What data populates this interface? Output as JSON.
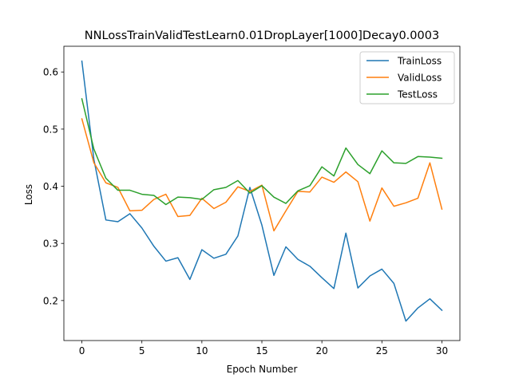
{
  "chart_data": {
    "type": "line",
    "title": "NNLossTrainValidTestLearn0.01DropLayer[1000]Decay0.0003",
    "xlabel": "Epoch Number",
    "ylabel": "Loss",
    "xlim": [
      -1.5,
      31.5
    ],
    "ylim": [
      0.13,
      0.645
    ],
    "xticks": [
      0,
      5,
      10,
      15,
      20,
      25,
      30
    ],
    "xtick_labels": [
      "0",
      "5",
      "10",
      "15",
      "20",
      "25",
      "30"
    ],
    "yticks": [
      0.2,
      0.3,
      0.4,
      0.5,
      0.6
    ],
    "ytick_labels": [
      "0.2",
      "0.3",
      "0.4",
      "0.5",
      "0.6"
    ],
    "grid": false,
    "legend_position": "top-right",
    "x": [
      0,
      1,
      2,
      3,
      4,
      5,
      6,
      7,
      8,
      9,
      10,
      11,
      12,
      13,
      14,
      15,
      16,
      17,
      18,
      19,
      20,
      21,
      22,
      23,
      24,
      25,
      26,
      27,
      28,
      29,
      30
    ],
    "series": [
      {
        "name": "TrainLoss",
        "color": "#1f77b4",
        "values": [
          0.619,
          0.447,
          0.341,
          0.338,
          0.352,
          0.327,
          0.295,
          0.269,
          0.275,
          0.237,
          0.289,
          0.274,
          0.281,
          0.313,
          0.398,
          0.332,
          0.244,
          0.294,
          0.272,
          0.26,
          0.24,
          0.221,
          0.318,
          0.222,
          0.243,
          0.255,
          0.23,
          0.164,
          0.187,
          0.203,
          0.183
        ]
      },
      {
        "name": "ValidLoss",
        "color": "#ff7f0e",
        "values": [
          0.518,
          0.441,
          0.406,
          0.398,
          0.357,
          0.358,
          0.377,
          0.386,
          0.347,
          0.349,
          0.379,
          0.361,
          0.372,
          0.399,
          0.391,
          0.402,
          0.322,
          0.357,
          0.391,
          0.39,
          0.416,
          0.407,
          0.425,
          0.408,
          0.339,
          0.397,
          0.365,
          0.371,
          0.379,
          0.441,
          0.36
        ]
      },
      {
        "name": "TestLoss",
        "color": "#2ca02c",
        "values": [
          0.553,
          0.465,
          0.414,
          0.393,
          0.393,
          0.386,
          0.384,
          0.368,
          0.381,
          0.38,
          0.377,
          0.394,
          0.398,
          0.41,
          0.388,
          0.401,
          0.381,
          0.37,
          0.392,
          0.401,
          0.434,
          0.418,
          0.467,
          0.438,
          0.422,
          0.462,
          0.441,
          0.44,
          0.452,
          0.451,
          0.449
        ]
      }
    ]
  }
}
